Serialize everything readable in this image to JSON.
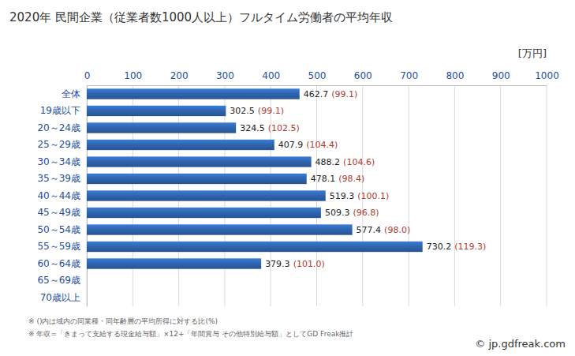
{
  "chart_data": {
    "type": "bar",
    "orientation": "horizontal",
    "title": "2020年 民間企業（従業者数1000人以上）フルタイム労働者の平均年収",
    "x_label": "[万円]",
    "categories": [
      "全体",
      "19歳以下",
      "20～24歳",
      "25～29歳",
      "30～34歳",
      "35～39歳",
      "40～44歳",
      "45～49歳",
      "50～54歳",
      "55～59歳",
      "60～64歳",
      "65～69歳",
      "70歳以上"
    ],
    "values": [
      462.7,
      302.5,
      324.5,
      407.9,
      488.2,
      478.1,
      519.3,
      509.3,
      577.4,
      730.2,
      379.3,
      null,
      null
    ],
    "ratio_labels": [
      "(99.1)",
      "(99.1)",
      "(102.5)",
      "(104.4)",
      "(104.6)",
      "(98.4)",
      "(100.1)",
      "(96.8)",
      "(98.0)",
      "(119.3)",
      "(101.0)",
      null,
      null
    ],
    "color": "#2f64ae",
    "xlim": [
      0,
      1000
    ],
    "xticks": [
      0,
      100,
      200,
      300,
      400,
      500,
      600,
      700,
      800,
      900,
      1000
    ],
    "grid": true,
    "data_labels": true,
    "annotations": [
      "※ ()内は域内の同業種・同年齢層の平均所得に対する比(%)",
      "※ 年収=「きまって支給する現金給与額」×12+「年間賞与 その他特別給与額」としてGD Freak推計",
      "© jp.gdfreak.com"
    ]
  }
}
